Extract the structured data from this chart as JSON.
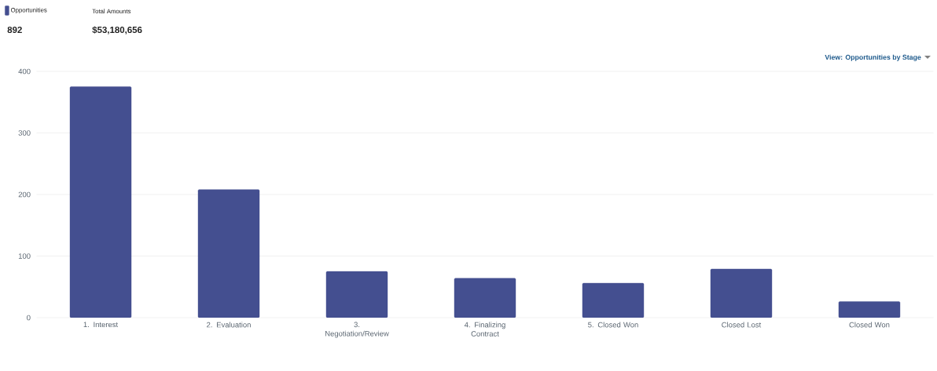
{
  "chart_data": {
    "type": "bar",
    "categories": [
      "1. Interest",
      "2. Evaluation",
      "3. Negotiation/Review",
      "4. Finalizing Contract",
      "5. Closed Won",
      "Closed Lost",
      "Closed Won"
    ],
    "series": [
      {
        "name": "Opportunities",
        "color": "#444f90",
        "values": [
          375,
          208,
          75,
          64,
          56,
          79,
          26
        ]
      }
    ],
    "ylim": [
      0,
      400
    ],
    "yticks": [
      0,
      100,
      200,
      300,
      400
    ],
    "grid": "y",
    "legend": "top left",
    "annotations": [
      "892",
      "Total Amounts",
      "$53,180,656",
      "View: Opportunities by Stage"
    ]
  }
}
